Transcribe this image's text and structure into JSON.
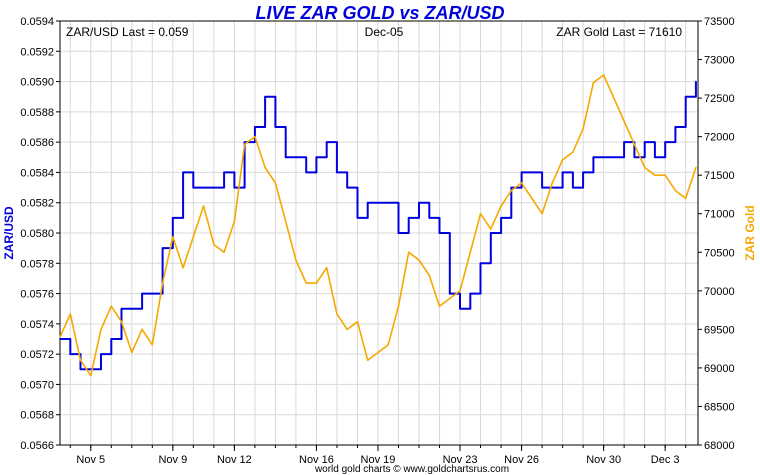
{
  "chart_data": {
    "type": "line",
    "title": "LIVE ZAR GOLD vs ZAR/USD",
    "left_label": "ZAR/USD Last = 0.059",
    "center_label": "Dec-05",
    "right_label": "ZAR Gold Last = 71610",
    "ylabel_left": "ZAR/USD",
    "ylabel_right": "ZAR Gold",
    "footer": "world gold charts © www.goldchartsrus.com",
    "colors": {
      "zarusd": "#0000e0",
      "gold": "#f5a800",
      "title": "#0000dd",
      "grid": "#d9d9d9"
    },
    "grid": true,
    "x_range": [
      3.5,
      34.6
    ],
    "x_ticks": [
      {
        "label": "Nov 5",
        "x": 5
      },
      {
        "label": "Nov 9",
        "x": 9
      },
      {
        "label": "Nov 12",
        "x": 12
      },
      {
        "label": "Nov 16",
        "x": 16
      },
      {
        "label": "Nov 19",
        "x": 19
      },
      {
        "label": "Nov 23",
        "x": 23
      },
      {
        "label": "Nov 26",
        "x": 26
      },
      {
        "label": "Nov 30",
        "x": 30
      },
      {
        "label": "Dec 3",
        "x": 33
      }
    ],
    "y_left": {
      "range": [
        0.0566,
        0.0594
      ],
      "ticks": [
        "0.0566",
        "0.0568",
        "0.0570",
        "0.0572",
        "0.0574",
        "0.0576",
        "0.0578",
        "0.0580",
        "0.0582",
        "0.0584",
        "0.0586",
        "0.0588",
        "0.0590",
        "0.0592",
        "0.0594"
      ]
    },
    "y_right": {
      "range": [
        68000,
        73500
      ],
      "ticks": [
        "68000",
        "68500",
        "69000",
        "69500",
        "70000",
        "70500",
        "71000",
        "71500",
        "72000",
        "72500",
        "73000",
        "73500"
      ]
    },
    "series": [
      {
        "name": "ZAR/USD",
        "axis": "left",
        "points": [
          [
            3.5,
            0.0573
          ],
          [
            4.0,
            0.0572
          ],
          [
            4.5,
            0.0571
          ],
          [
            5.0,
            0.0571
          ],
          [
            5.5,
            0.0572
          ],
          [
            6.0,
            0.0573
          ],
          [
            6.5,
            0.0575
          ],
          [
            7.0,
            0.0575
          ],
          [
            7.5,
            0.0576
          ],
          [
            8.0,
            0.0576
          ],
          [
            8.5,
            0.0579
          ],
          [
            9.0,
            0.0581
          ],
          [
            9.5,
            0.0584
          ],
          [
            10.0,
            0.0583
          ],
          [
            10.5,
            0.0583
          ],
          [
            11.0,
            0.0583
          ],
          [
            11.5,
            0.0584
          ],
          [
            12.0,
            0.0583
          ],
          [
            12.5,
            0.0586
          ],
          [
            13.0,
            0.0587
          ],
          [
            13.5,
            0.0589
          ],
          [
            14.0,
            0.0587
          ],
          [
            14.5,
            0.0585
          ],
          [
            15.0,
            0.0585
          ],
          [
            15.5,
            0.0584
          ],
          [
            16.0,
            0.0585
          ],
          [
            16.5,
            0.0586
          ],
          [
            17.0,
            0.0584
          ],
          [
            17.5,
            0.0583
          ],
          [
            18.0,
            0.0581
          ],
          [
            18.5,
            0.0582
          ],
          [
            19.0,
            0.0582
          ],
          [
            19.5,
            0.0582
          ],
          [
            20.0,
            0.058
          ],
          [
            20.5,
            0.0581
          ],
          [
            21.0,
            0.0582
          ],
          [
            21.5,
            0.0581
          ],
          [
            22.0,
            0.058
          ],
          [
            22.5,
            0.0576
          ],
          [
            23.0,
            0.0575
          ],
          [
            23.5,
            0.0576
          ],
          [
            24.0,
            0.0578
          ],
          [
            24.5,
            0.058
          ],
          [
            25.0,
            0.0581
          ],
          [
            25.5,
            0.0583
          ],
          [
            26.0,
            0.0584
          ],
          [
            26.5,
            0.0584
          ],
          [
            27.0,
            0.0583
          ],
          [
            27.5,
            0.0583
          ],
          [
            28.0,
            0.0584
          ],
          [
            28.5,
            0.0583
          ],
          [
            29.0,
            0.0584
          ],
          [
            29.5,
            0.0585
          ],
          [
            30.0,
            0.0585
          ],
          [
            30.5,
            0.0585
          ],
          [
            31.0,
            0.0586
          ],
          [
            31.5,
            0.0585
          ],
          [
            32.0,
            0.0586
          ],
          [
            32.5,
            0.0585
          ],
          [
            33.0,
            0.0586
          ],
          [
            33.5,
            0.0587
          ],
          [
            34.0,
            0.0589
          ],
          [
            34.5,
            0.059
          ]
        ]
      },
      {
        "name": "ZAR Gold",
        "axis": "right",
        "points": [
          [
            3.5,
            69400
          ],
          [
            4.0,
            69700
          ],
          [
            4.5,
            69100
          ],
          [
            5.0,
            68900
          ],
          [
            5.5,
            69500
          ],
          [
            6.0,
            69800
          ],
          [
            6.5,
            69600
          ],
          [
            7.0,
            69200
          ],
          [
            7.5,
            69500
          ],
          [
            8.0,
            69300
          ],
          [
            8.5,
            70100
          ],
          [
            9.0,
            70700
          ],
          [
            9.5,
            70300
          ],
          [
            10.0,
            70700
          ],
          [
            10.5,
            71100
          ],
          [
            11.0,
            70600
          ],
          [
            11.5,
            70500
          ],
          [
            12.0,
            70900
          ],
          [
            12.5,
            71900
          ],
          [
            13.0,
            72000
          ],
          [
            13.5,
            71600
          ],
          [
            14.0,
            71400
          ],
          [
            14.5,
            70900
          ],
          [
            15.0,
            70400
          ],
          [
            15.5,
            70100
          ],
          [
            16.0,
            70100
          ],
          [
            16.5,
            70300
          ],
          [
            17.0,
            69700
          ],
          [
            17.5,
            69500
          ],
          [
            18.0,
            69600
          ],
          [
            18.5,
            69100
          ],
          [
            19.0,
            69200
          ],
          [
            19.5,
            69300
          ],
          [
            20.0,
            69800
          ],
          [
            20.5,
            70500
          ],
          [
            21.0,
            70400
          ],
          [
            21.5,
            70200
          ],
          [
            22.0,
            69800
          ],
          [
            22.5,
            69900
          ],
          [
            23.0,
            70000
          ],
          [
            23.5,
            70500
          ],
          [
            24.0,
            71000
          ],
          [
            24.5,
            70800
          ],
          [
            25.0,
            71100
          ],
          [
            25.5,
            71300
          ],
          [
            26.0,
            71400
          ],
          [
            26.5,
            71200
          ],
          [
            27.0,
            71000
          ],
          [
            27.5,
            71400
          ],
          [
            28.0,
            71700
          ],
          [
            28.5,
            71800
          ],
          [
            29.0,
            72100
          ],
          [
            29.5,
            72700
          ],
          [
            30.0,
            72800
          ],
          [
            30.5,
            72500
          ],
          [
            31.0,
            72200
          ],
          [
            31.5,
            71900
          ],
          [
            32.0,
            71600
          ],
          [
            32.5,
            71500
          ],
          [
            33.0,
            71500
          ],
          [
            33.5,
            71300
          ],
          [
            34.0,
            71200
          ],
          [
            34.5,
            71600
          ]
        ]
      }
    ]
  }
}
